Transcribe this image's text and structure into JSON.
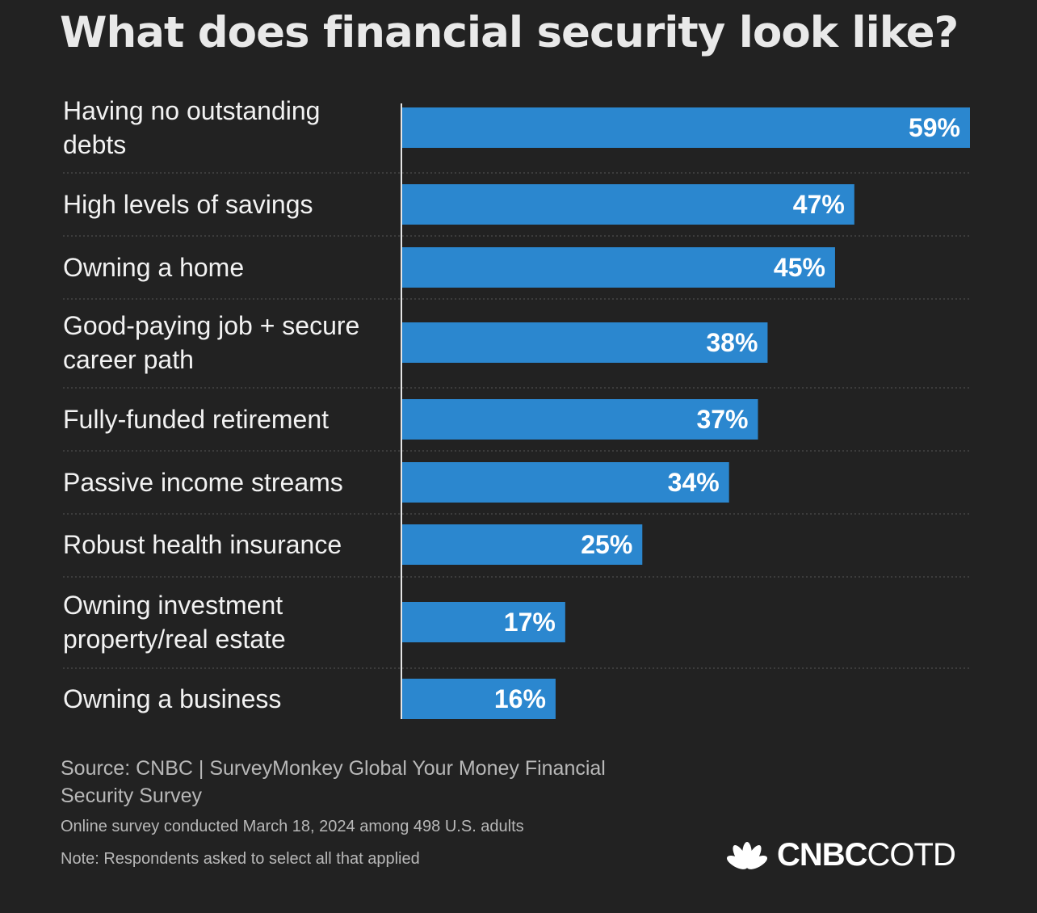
{
  "title": "What does financial security look like?",
  "chart_data": {
    "type": "bar",
    "orientation": "horizontal",
    "categories": [
      [
        "Having no outstanding",
        "debts"
      ],
      [
        "High levels of savings"
      ],
      [
        "Owning a home"
      ],
      [
        "Good-paying job + secure",
        "career path"
      ],
      [
        "Fully-funded retirement"
      ],
      [
        "Passive income streams"
      ],
      [
        "Robust health insurance"
      ],
      [
        "Owning investment",
        "property/real estate"
      ],
      [
        "Owning a business"
      ]
    ],
    "values": [
      59,
      47,
      45,
      38,
      37,
      34,
      25,
      17,
      16
    ],
    "value_labels": [
      "59%",
      "47%",
      "45%",
      "38%",
      "37%",
      "34%",
      "25%",
      "17%",
      "16%"
    ],
    "xlim": [
      0,
      59
    ],
    "bar_color": "#2b87cf",
    "grid": false
  },
  "footer": {
    "source": "Source: CNBC | SurveyMonkey Global Your Money Financial Security Survey",
    "survey": "Online survey conducted March 18, 2024 among 498 U.S. adults",
    "note": "Note: Respondents asked to select all that applied"
  },
  "logo": {
    "bold": "CNBC",
    "light": "COTD",
    "icon": "peacock-icon"
  }
}
